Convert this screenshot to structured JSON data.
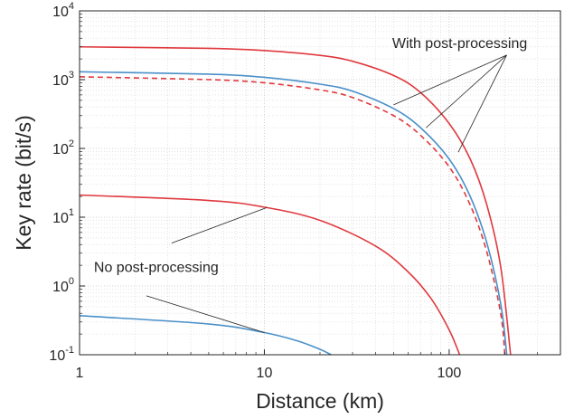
{
  "chart_data": {
    "type": "line",
    "xlabel": "Distance (km)",
    "ylabel": "Key rate (bit/s)",
    "xscale": "log",
    "yscale": "log",
    "xlim": [
      1,
      400
    ],
    "ylim": [
      0.1,
      10000
    ],
    "grid": true,
    "x_ticks": [
      {
        "value": 1,
        "label": "1"
      },
      {
        "value": 10,
        "label": "10"
      },
      {
        "value": 100,
        "label": "100"
      }
    ],
    "y_ticks": [
      {
        "value": 0.1,
        "base": "10",
        "exp": "-1"
      },
      {
        "value": 1,
        "base": "10",
        "exp": "0"
      },
      {
        "value": 10,
        "base": "10",
        "exp": "1"
      },
      {
        "value": 100,
        "base": "10",
        "exp": "2"
      },
      {
        "value": 1000,
        "base": "10",
        "exp": "3"
      },
      {
        "value": 10000,
        "base": "10",
        "exp": "4"
      }
    ],
    "series": [
      {
        "color": "#e0393e",
        "dash": "solid",
        "x": [
          1,
          5,
          10,
          20,
          30,
          50,
          70,
          100,
          130,
          160,
          190,
          215
        ],
        "y": [
          3000,
          2850,
          2650,
          2250,
          1850,
          1150,
          650,
          230,
          70,
          15,
          1.9,
          0.1
        ]
      },
      {
        "color": "#4a90c8",
        "dash": "solid",
        "x": [
          1,
          5,
          10,
          20,
          30,
          50,
          70,
          100,
          130,
          160,
          190,
          205
        ],
        "y": [
          1300,
          1200,
          1080,
          860,
          680,
          380,
          200,
          70,
          20,
          4.2,
          0.55,
          0.1
        ]
      },
      {
        "color": "#e0393e",
        "dash": "dashed",
        "x": [
          1,
          5,
          10,
          20,
          30,
          50,
          70,
          100,
          130,
          160,
          190,
          200
        ],
        "y": [
          1100,
          1000,
          900,
          710,
          550,
          300,
          155,
          54,
          15,
          3.1,
          0.4,
          0.1
        ]
      },
      {
        "color": "#e0393e",
        "dash": "solid",
        "x": [
          1,
          5,
          10,
          20,
          40,
          60,
          80,
          100,
          114
        ],
        "y": [
          21,
          17.5,
          14,
          9,
          3.8,
          1.6,
          0.65,
          0.23,
          0.1
        ]
      },
      {
        "color": "#4a90c8",
        "dash": "solid",
        "x": [
          1,
          5,
          10,
          15,
          20,
          23
        ],
        "y": [
          0.37,
          0.28,
          0.21,
          0.16,
          0.12,
          0.1
        ]
      }
    ],
    "annotations": [
      {
        "text": "With post-processing",
        "label_at": [
          114,
          2900
        ],
        "pointers": [
          [
            50,
            430
          ],
          [
            75,
            200
          ],
          [
            112,
            88
          ]
        ]
      },
      {
        "text": "No post-processing",
        "label_at": [
          2.6,
          1.6
        ],
        "pointers": [
          [
            3.15,
            4.2
          ],
          [
            2.3,
            0.72
          ]
        ],
        "targets": [
          [
            10.3,
            13.8
          ],
          [
            10,
            0.21
          ]
        ]
      }
    ],
    "line_colors": {
      "red": "#e0393e",
      "blue": "#4a90c8"
    }
  }
}
